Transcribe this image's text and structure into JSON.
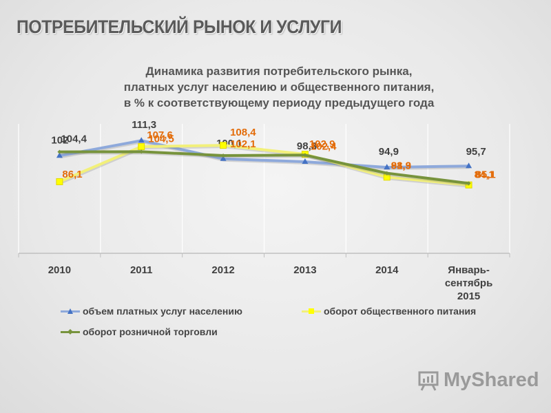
{
  "page_title": "ПОТРЕБИТЕЛЬСКИЙ РЫНОК И УСЛУГИ",
  "chart_title_lines": [
    "Динамика развития потребительского рынка,",
    "платных услуг населению и общественного питания,",
    "в % к соответствующему периоду предыдущего года"
  ],
  "watermark_text": "MyShared",
  "chart_data": {
    "type": "line",
    "categories": [
      "2010",
      "2011",
      "2012",
      "2013",
      "2014",
      "Январь-сентябрь 2015"
    ],
    "category_lines": [
      [
        "2010"
      ],
      [
        "2011"
      ],
      [
        "2012"
      ],
      [
        "2013"
      ],
      [
        "2014"
      ],
      [
        "Январь-",
        "сентябрь",
        "2015"
      ]
    ],
    "series": [
      {
        "name": "объем платных услуг населению",
        "values": [
          102,
          111.3,
          100.1,
          98.3,
          94.9,
          95.7
        ],
        "labels": [
          "102",
          "111,3",
          "100,1",
          "98,3",
          "94,9",
          "95,7"
        ],
        "color": "#8ea9db",
        "label_color": "#404040",
        "marker": "triangle"
      },
      {
        "name": "оборот общественного питания",
        "values": [
          86.1,
          107.6,
          108.4,
          102.9,
          88.9,
          84.1
        ],
        "labels": [
          "86,1",
          "107,6",
          "108,4",
          "102,9",
          "88,9",
          "84,1"
        ],
        "color": "#f2f07a",
        "label_color": "#e36c0a",
        "marker": "square"
      },
      {
        "name": "оборот розничной торговли",
        "values": [
          104.4,
          104.5,
          102.1,
          102.4,
          91.3,
          85.1
        ],
        "labels": [
          "104,4",
          "104,5",
          "102,1",
          "102,4",
          "91,3",
          "85,1"
        ],
        "label_colors": [
          "#404040",
          "#e36c0a",
          "#e36c0a",
          "#e36c0a",
          "#e36c0a",
          "#e36c0a"
        ],
        "color": "#77933c",
        "marker": "diamond"
      }
    ],
    "legend_position": "bottom",
    "grid": "vertical",
    "xlabel": "",
    "ylabel": ""
  }
}
